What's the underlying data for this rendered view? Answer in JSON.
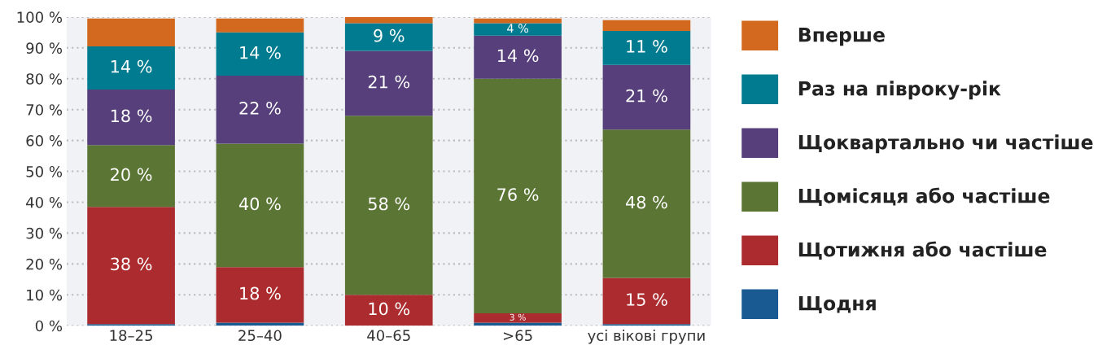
{
  "chart_data": {
    "type": "bar",
    "stacked": true,
    "categories": [
      "18–25",
      "25–40",
      "40–65",
      ">65",
      "усі вікові групи"
    ],
    "series": [
      {
        "name": "Щодня",
        "color": "#1a5a92",
        "values": [
          0.5,
          1,
          0,
          1,
          0.5
        ],
        "value_labels": [
          null,
          null,
          null,
          null,
          null
        ]
      },
      {
        "name": "Щотижня або частіше",
        "color": "#ab2b2e",
        "values": [
          38,
          18,
          10,
          3,
          15
        ],
        "value_labels": [
          "38 %",
          "18 %",
          "10 %",
          "3 %",
          "15 %"
        ]
      },
      {
        "name": "Щомісяця або частіше",
        "color": "#5a7534",
        "values": [
          20,
          40,
          58,
          76,
          48
        ],
        "value_labels": [
          "20 %",
          "40 %",
          "58 %",
          "76 %",
          "48 %"
        ]
      },
      {
        "name": "Щоквартально чи частіше",
        "color": "#563f7a",
        "values": [
          18,
          22,
          21,
          14,
          21
        ],
        "value_labels": [
          "18 %",
          "22 %",
          "21 %",
          "14 %",
          "21 %"
        ]
      },
      {
        "name": "Раз на півроку-рік",
        "color": "#007b8f",
        "values": [
          14,
          14,
          9,
          4,
          11
        ],
        "value_labels": [
          "14 %",
          "14 %",
          "9 %",
          "4 %",
          "11 %"
        ]
      },
      {
        "name": "Вперше",
        "color": "#d2691e",
        "values": [
          9,
          4.5,
          2,
          1.5,
          3.5
        ],
        "value_labels": [
          null,
          null,
          null,
          null,
          null
        ]
      }
    ],
    "ylim": [
      0,
      100
    ],
    "yticks": [
      {
        "value": 0,
        "label": "0 %"
      },
      {
        "value": 10,
        "label": "10 %"
      },
      {
        "value": 20,
        "label": "20 %"
      },
      {
        "value": 30,
        "label": "30 %"
      },
      {
        "value": 40,
        "label": "40 %"
      },
      {
        "value": 50,
        "label": "50 %"
      },
      {
        "value": 60,
        "label": "60 %"
      },
      {
        "value": 70,
        "label": "70 %"
      },
      {
        "value": 80,
        "label": "80 %"
      },
      {
        "value": 90,
        "label": "90 %"
      },
      {
        "value": 100,
        "label": "100 %"
      }
    ],
    "grid": "y",
    "legend": "right"
  }
}
